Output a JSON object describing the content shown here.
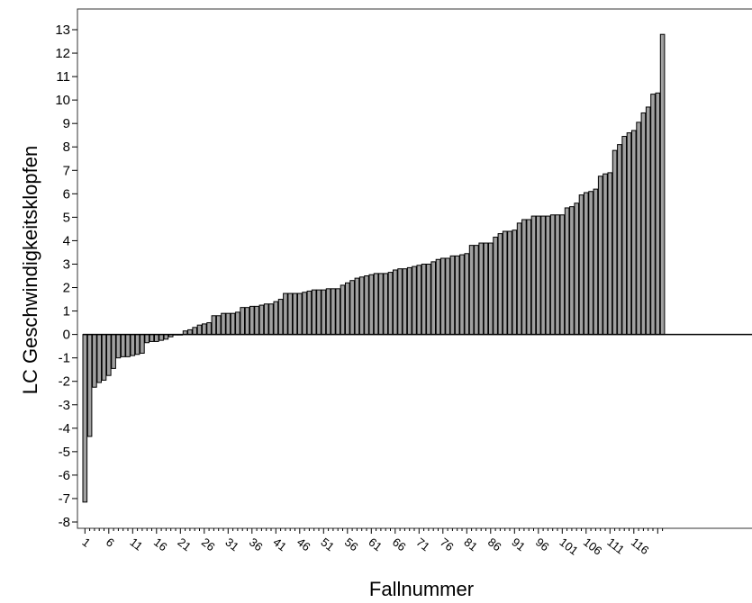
{
  "chart_data": {
    "type": "bar",
    "xlabel": "Fallnummer",
    "ylabel": "LC Geschwindigkeitsklopfen",
    "ylim": [
      -8,
      13
    ],
    "yticks": [
      13,
      12,
      11,
      10,
      9,
      8,
      7,
      6,
      5,
      4,
      3,
      2,
      1,
      0,
      -1,
      -2,
      -3,
      -4,
      -5,
      -6,
      -7,
      -8
    ],
    "xticks": [
      1,
      6,
      11,
      16,
      21,
      26,
      31,
      36,
      41,
      46,
      51,
      56,
      61,
      66,
      71,
      76,
      81,
      86,
      91,
      96,
      101,
      106,
      111,
      116
    ],
    "grid": false,
    "colors": {
      "bar_fill": "#a0a0a0",
      "bar_stroke": "#000000"
    },
    "values": [
      -7.15,
      -4.35,
      -2.25,
      -2.05,
      -1.95,
      -1.75,
      -1.45,
      -1.0,
      -0.95,
      -0.95,
      -0.9,
      -0.85,
      -0.8,
      -0.35,
      -0.3,
      -0.3,
      -0.25,
      -0.2,
      -0.1,
      0.0,
      0.0,
      0.15,
      0.2,
      0.3,
      0.4,
      0.45,
      0.5,
      0.8,
      0.8,
      0.9,
      0.9,
      0.9,
      0.95,
      1.15,
      1.15,
      1.2,
      1.2,
      1.25,
      1.3,
      1.3,
      1.4,
      1.5,
      1.75,
      1.75,
      1.75,
      1.75,
      1.8,
      1.85,
      1.9,
      1.9,
      1.9,
      1.95,
      1.95,
      1.95,
      2.1,
      2.2,
      2.3,
      2.4,
      2.45,
      2.5,
      2.55,
      2.6,
      2.6,
      2.6,
      2.65,
      2.75,
      2.8,
      2.8,
      2.85,
      2.9,
      2.95,
      3.0,
      3.0,
      3.1,
      3.2,
      3.25,
      3.25,
      3.35,
      3.35,
      3.4,
      3.45,
      3.8,
      3.8,
      3.9,
      3.9,
      3.9,
      4.15,
      4.3,
      4.4,
      4.4,
      4.45,
      4.75,
      4.9,
      4.9,
      5.05,
      5.05,
      5.05,
      5.05,
      5.1,
      5.1,
      5.1,
      5.4,
      5.45,
      5.6,
      5.95,
      6.05,
      6.1,
      6.2,
      6.75,
      6.85,
      6.9,
      7.85,
      8.1,
      8.45,
      8.6,
      8.7,
      9.05,
      9.45,
      9.7,
      10.25,
      10.3,
      12.8
    ]
  }
}
